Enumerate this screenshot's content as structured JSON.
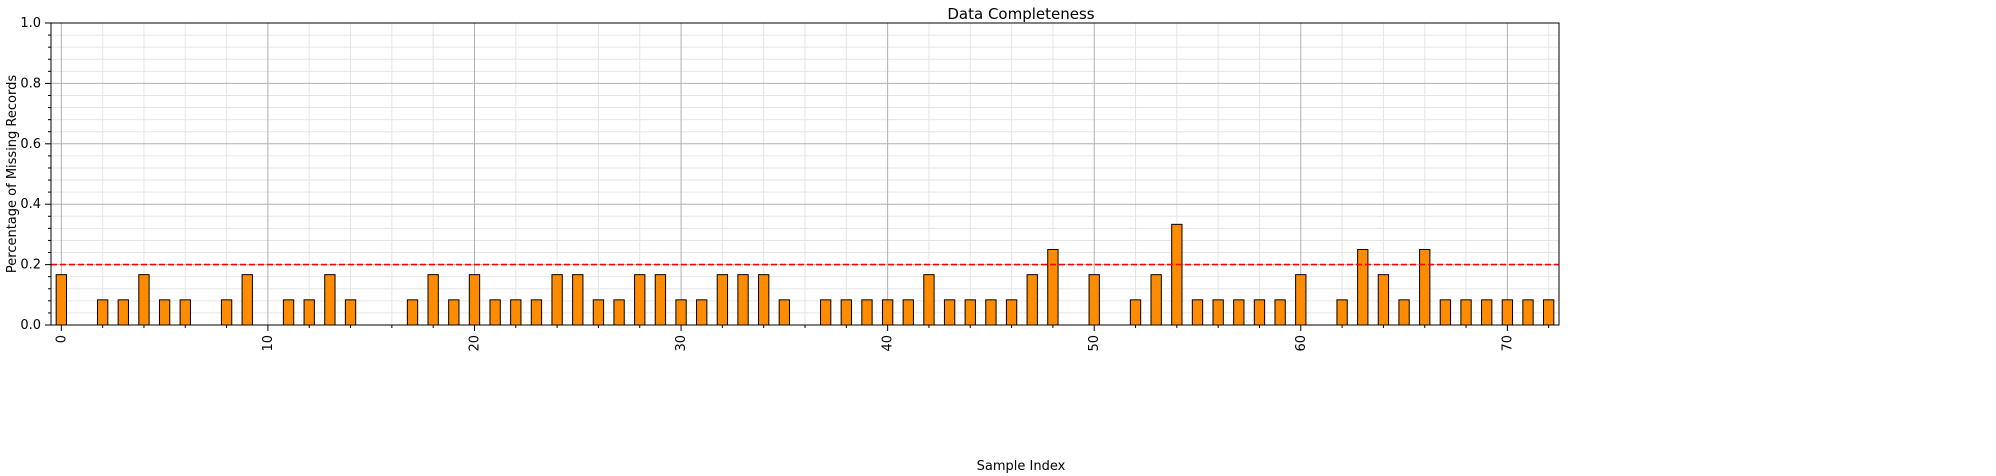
{
  "chart_data": {
    "type": "bar",
    "title": "Data Completeness",
    "xlabel": "Sample Index",
    "ylabel": "Percentage of Missing Records",
    "ylim": [
      0,
      1.0
    ],
    "xlim": [
      -0.5,
      72.5
    ],
    "y_ticks": [
      0.0,
      0.2,
      0.4,
      0.6,
      0.8,
      1.0
    ],
    "y_tick_labels": [
      "0.0",
      "0.2",
      "0.4",
      "0.6",
      "0.8",
      "1.0"
    ],
    "x_ticks": [
      0,
      10,
      20,
      30,
      40,
      50,
      60,
      70
    ],
    "x_tick_labels": [
      "0",
      "10",
      "20",
      "30",
      "40",
      "50",
      "60",
      "70"
    ],
    "x_tick_rotation": "vertical",
    "grid": "major and minor",
    "values": [
      0.1667,
      0,
      0.0833,
      0.0833,
      0.1667,
      0.0833,
      0.0833,
      0,
      0.0833,
      0.1667,
      0,
      0.0833,
      0.0833,
      0.1667,
      0.0833,
      0,
      0,
      0.0833,
      0.1667,
      0.0833,
      0.1667,
      0.0833,
      0.0833,
      0.0833,
      0.1667,
      0.1667,
      0.0833,
      0.0833,
      0.1667,
      0.1667,
      0.0833,
      0.0833,
      0.1667,
      0.1667,
      0.1667,
      0.0833,
      0,
      0.0833,
      0.0833,
      0.0833,
      0.0833,
      0.0833,
      0.1667,
      0.0833,
      0.0833,
      0.0833,
      0.0833,
      0.1667,
      0.25,
      0,
      0.1667,
      0,
      0.0833,
      0.1667,
      0.3333,
      0.0833,
      0.0833,
      0.0833,
      0.0833,
      0.0833,
      0.1667,
      0,
      0.0833,
      0.25,
      0.1667,
      0.0833,
      0.25,
      0.0833,
      0.0833,
      0.0833,
      0.0833,
      0.0833,
      0.0833
    ],
    "bar_color": "#ff8c00",
    "bar_edge_color": "#000000",
    "threshold": {
      "value": 0.2,
      "color": "#ff0000",
      "style": "dashed"
    }
  }
}
